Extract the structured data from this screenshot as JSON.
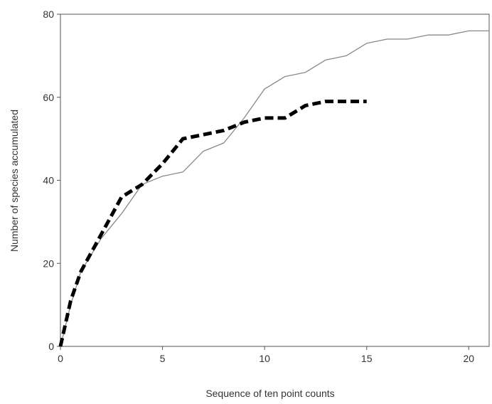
{
  "chart_data": {
    "type": "line",
    "title": "",
    "xlabel": "Sequence of ten point counts",
    "ylabel": "Number of species accumulated",
    "xlim": [
      0,
      21
    ],
    "ylim": [
      0,
      80
    ],
    "x_ticks": [
      0,
      5,
      10,
      15,
      20
    ],
    "y_ticks": [
      0,
      20,
      40,
      60,
      80
    ],
    "grid": false,
    "legend": "none",
    "series": [
      {
        "style": "solid-thin",
        "color": "#888888",
        "x": [
          0,
          0.5,
          1,
          2,
          3,
          4,
          5,
          6,
          7,
          8,
          9,
          10,
          11,
          12,
          13,
          14,
          15,
          16,
          17,
          18,
          19,
          20,
          21
        ],
        "values": [
          0,
          10,
          18,
          26,
          32,
          39,
          41,
          42,
          47,
          49,
          55,
          62,
          65,
          66,
          69,
          70,
          73,
          74,
          74,
          75,
          75,
          76,
          76
        ]
      },
      {
        "style": "dashed-thick",
        "color": "#000000",
        "x": [
          0,
          0.5,
          1,
          2,
          3,
          4,
          5,
          6,
          7,
          8,
          9,
          10,
          11,
          12,
          13,
          14,
          15
        ],
        "values": [
          0,
          11,
          18,
          27,
          36,
          39,
          44,
          50,
          51,
          52,
          54,
          55,
          55,
          58,
          59,
          59,
          59
        ]
      }
    ]
  }
}
